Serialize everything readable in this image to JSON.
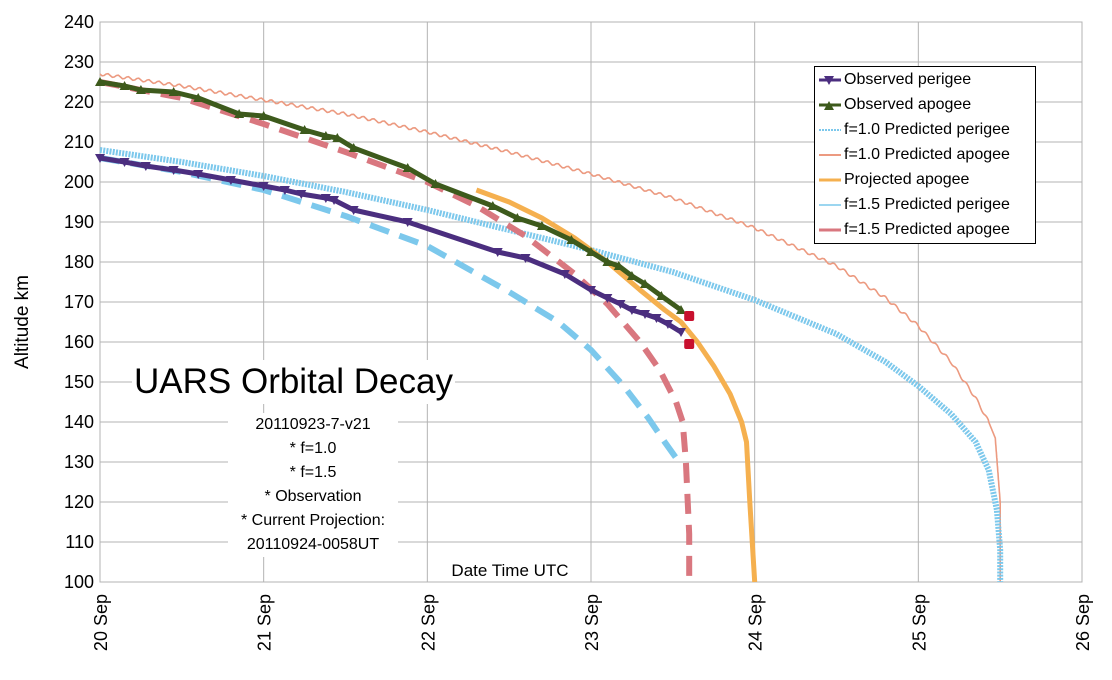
{
  "chart_data": {
    "type": "line",
    "title": "UARS Orbital Decay",
    "xlabel": "Date Time UTC",
    "ylabel": "Altitude km",
    "xlim": [
      "20 Sep",
      "26 Sep"
    ],
    "ylim": [
      100,
      240
    ],
    "x_ticks": [
      "20 Sep",
      "21 Sep",
      "22 Sep",
      "23 Sep",
      "24 Sep",
      "25 Sep",
      "26 Sep"
    ],
    "y_ticks": [
      100,
      110,
      120,
      130,
      140,
      150,
      160,
      170,
      180,
      190,
      200,
      210,
      220,
      230,
      240
    ],
    "grid": true,
    "legend_position": "top-right",
    "x_unit": "days after 20 Sep 00:00 UTC",
    "notes": [
      "20110923-7-v21",
      "* f=1.0",
      "* f=1.5",
      "* Observation",
      "* Current Projection:",
      "20110924-0058UT"
    ],
    "series": [
      {
        "name": "Observed perigee",
        "color": "#4b2e7f",
        "marker": "triangle-down",
        "x": [
          0.0,
          0.15,
          0.28,
          0.45,
          0.6,
          0.8,
          1.0,
          1.13,
          1.23,
          1.38,
          1.43,
          1.55,
          1.88,
          2.43,
          2.6,
          2.84,
          3.0,
          3.1,
          3.18,
          3.25,
          3.33,
          3.4,
          3.47,
          3.55
        ],
        "y": [
          206,
          205,
          204,
          203,
          202,
          200.5,
          199,
          198,
          197,
          196,
          195.5,
          193,
          190,
          182.5,
          181,
          177,
          173,
          171,
          169.5,
          168,
          167,
          166,
          164.5,
          162.5
        ]
      },
      {
        "name": "Observed apogee",
        "color": "#3d5a1c",
        "marker": "triangle-up",
        "x": [
          0.0,
          0.15,
          0.25,
          0.45,
          0.6,
          0.85,
          1.0,
          1.25,
          1.38,
          1.45,
          1.55,
          1.88,
          2.05,
          2.4,
          2.55,
          2.7,
          2.88,
          3.0,
          3.1,
          3.17,
          3.25,
          3.33,
          3.43,
          3.55
        ],
        "y": [
          225,
          224,
          223,
          222.5,
          221,
          217,
          216.5,
          213,
          211.5,
          211,
          208.5,
          203.5,
          199.5,
          194,
          191,
          189,
          185.5,
          182.5,
          180,
          179,
          176.5,
          174.5,
          171.5,
          168
        ]
      },
      {
        "name": "f=1.0 Predicted perigee",
        "color": "#7cc8ec",
        "style": "dotted-thick",
        "x": [
          0.0,
          0.5,
          1.0,
          1.5,
          2.0,
          2.5,
          3.0,
          3.5,
          4.0,
          4.5,
          4.8,
          5.0,
          5.2,
          5.35,
          5.43,
          5.48,
          5.5,
          5.5
        ],
        "y": [
          208,
          205,
          201.5,
          197.5,
          193,
          188,
          183,
          177.5,
          170.5,
          162,
          155,
          149,
          142,
          135,
          128,
          118,
          108,
          100
        ]
      },
      {
        "name": "f=1.0 Predicted apogee",
        "color": "#ec9a80",
        "style": "wavy",
        "x": [
          0.0,
          0.5,
          1.0,
          1.5,
          2.0,
          2.5,
          3.0,
          3.5,
          4.0,
          4.5,
          4.8,
          5.0,
          5.2,
          5.35,
          5.43,
          5.47,
          5.5,
          5.5
        ],
        "y": [
          227,
          224,
          220.5,
          217,
          212.5,
          207.5,
          202,
          196,
          188.5,
          179,
          171,
          164,
          155,
          146,
          140,
          136,
          120,
          100
        ]
      },
      {
        "name": "Projected apogee",
        "color": "#f5b04f",
        "x": [
          2.3,
          2.5,
          2.7,
          2.9,
          3.1,
          3.3,
          3.45,
          3.55,
          3.65,
          3.75,
          3.85,
          3.92,
          3.95,
          3.97,
          4.0
        ],
        "y": [
          198,
          195,
          191,
          186,
          180,
          173,
          168,
          165,
          160,
          154,
          147,
          140,
          135,
          120,
          100
        ]
      },
      {
        "name": "f=1.5 Predicted perigee",
        "color": "#7cc8ec",
        "style": "dashed",
        "x": [
          0.0,
          0.5,
          1.0,
          1.5,
          2.0,
          2.5,
          2.8,
          3.0,
          3.2,
          3.35,
          3.45,
          3.52,
          3.55
        ],
        "y": [
          206,
          202.5,
          198,
          191.5,
          184,
          172.5,
          165,
          158,
          149,
          141,
          135,
          131,
          129
        ]
      },
      {
        "name": "f=1.5 Predicted apogee",
        "color": "#d9777f",
        "style": "dashed",
        "x": [
          0.0,
          0.5,
          1.0,
          1.5,
          2.0,
          2.3,
          2.6,
          2.9,
          3.1,
          3.3,
          3.42,
          3.52,
          3.56,
          3.58,
          3.6,
          3.6
        ],
        "y": [
          225,
          221,
          214.5,
          207.5,
          200,
          194,
          186.5,
          177,
          169.5,
          160,
          153,
          145,
          140,
          130,
          112,
          100
        ]
      }
    ],
    "end_markers": [
      {
        "x": 3.6,
        "y": 166.5,
        "color": "#c8102e"
      },
      {
        "x": 3.6,
        "y": 159.5,
        "color": "#c8102e"
      }
    ]
  }
}
